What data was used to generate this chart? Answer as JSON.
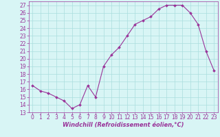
{
  "x": [
    0,
    1,
    2,
    3,
    4,
    5,
    6,
    7,
    8,
    9,
    10,
    11,
    12,
    13,
    14,
    15,
    16,
    17,
    18,
    19,
    20,
    21,
    22,
    23
  ],
  "y": [
    16.5,
    15.8,
    15.5,
    15.0,
    14.5,
    13.5,
    14.0,
    16.5,
    15.0,
    19.0,
    20.5,
    21.5,
    23.0,
    24.5,
    25.0,
    25.5,
    26.5,
    27.0,
    27.0,
    27.0,
    26.0,
    24.5,
    21.0,
    18.5
  ],
  "line_color": "#993399",
  "marker": "D",
  "marker_size": 2.0,
  "bg_color": "#d8f5f5",
  "grid_color": "#aadddd",
  "xlabel": "Windchill (Refroidissement éolien,°C)",
  "xlabel_color": "#993399",
  "xlabel_fontsize": 6.0,
  "tick_color": "#993399",
  "tick_fontsize": 5.5,
  "ylim": [
    13,
    27.5
  ],
  "xlim": [
    -0.5,
    23.5
  ],
  "yticks": [
    13,
    14,
    15,
    16,
    17,
    18,
    19,
    20,
    21,
    22,
    23,
    24,
    25,
    26,
    27
  ],
  "xticks": [
    0,
    1,
    2,
    3,
    4,
    5,
    6,
    7,
    8,
    9,
    10,
    11,
    12,
    13,
    14,
    15,
    16,
    17,
    18,
    19,
    20,
    21,
    22,
    23
  ]
}
